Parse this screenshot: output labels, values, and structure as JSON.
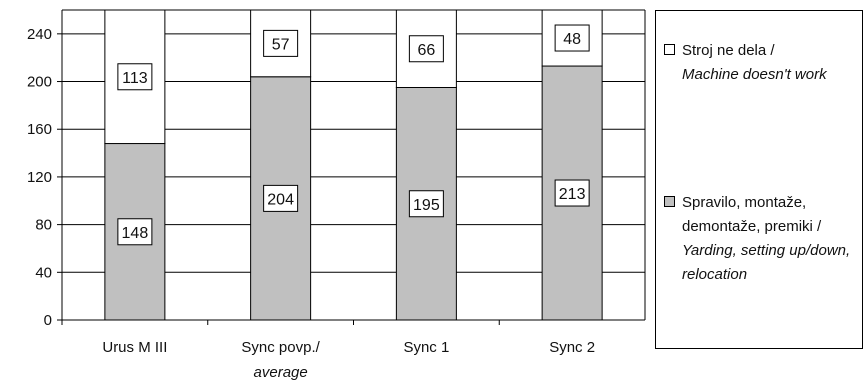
{
  "chart_data": {
    "type": "bar",
    "stacked": true,
    "categories": [
      {
        "line1": "Urus M III",
        "line2": ""
      },
      {
        "line1": "Sync povp./",
        "line2": "average"
      },
      {
        "line1": "Sync 1",
        "line2": ""
      },
      {
        "line1": "Sync 2",
        "line2": ""
      }
    ],
    "series": [
      {
        "name_sl": "Spravilo, montaže, demontaže, premiki /",
        "name_en": "Yarding, setting up/down, relocation",
        "color": "#c0c0c0",
        "values": [
          148,
          204,
          195,
          213
        ]
      },
      {
        "name_sl": "Stroj ne dela /",
        "name_en": "Machine doesn't work",
        "color": "#ffffff",
        "values": [
          113,
          57,
          66,
          48
        ]
      }
    ],
    "yticks": [
      0,
      40,
      80,
      120,
      160,
      200,
      240
    ],
    "ylim": [
      0,
      260
    ],
    "grid": true,
    "legend_position": "right"
  }
}
